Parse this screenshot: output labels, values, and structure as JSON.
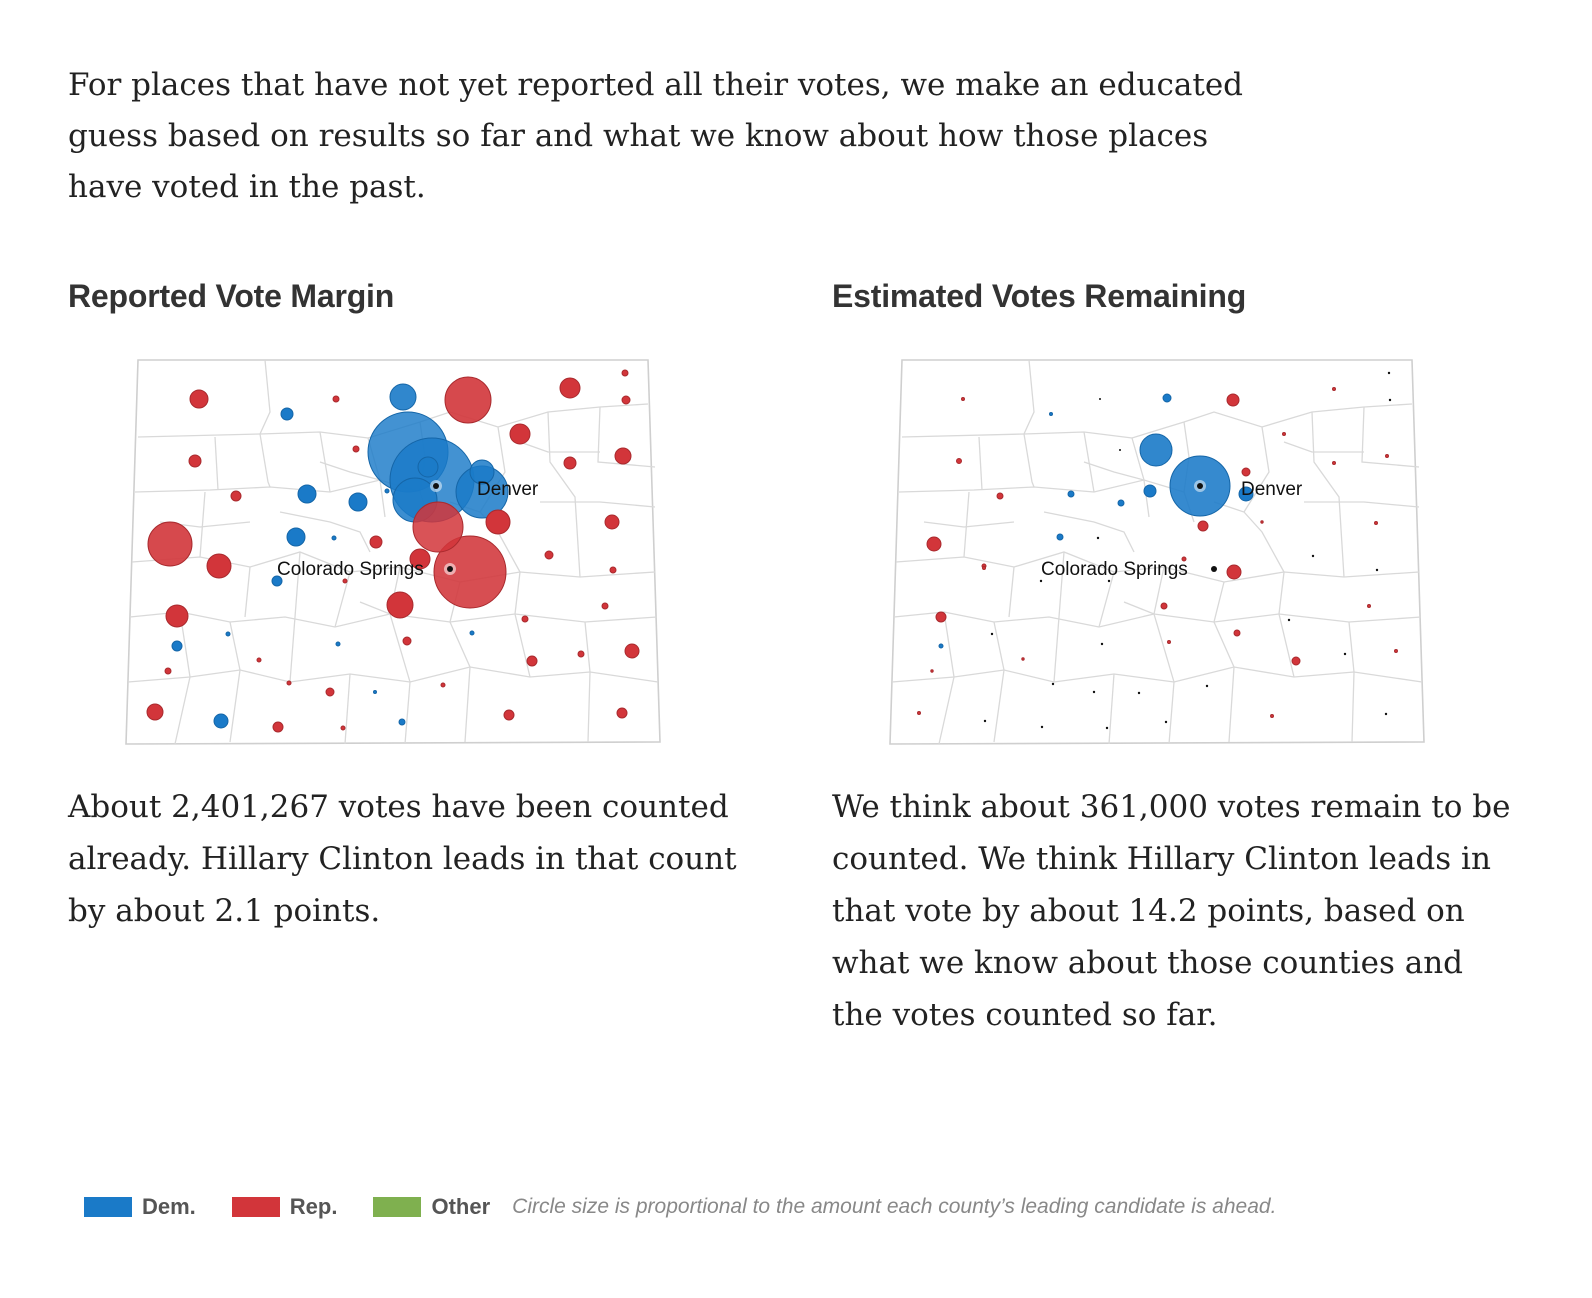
{
  "intro_text": "For places that have not yet reported all their votes, we make an educated guess based on results so far and what we know about how those places have voted in the past.",
  "colors": {
    "dem": "#1a7ac8",
    "rep": "#d2353a",
    "other": "#7fb04f",
    "map_line": "#d9d9d9"
  },
  "panels": [
    {
      "title": "Reported Vote Margin",
      "description": "About 2,401,267 votes have been counted already. Hillary Clinton leads in that count by about 2.1 points.",
      "cities": [
        "Denver",
        "Colorado Springs"
      ]
    },
    {
      "title": "Estimated Votes Remaining",
      "description": "We think about 361,000 votes remain to be counted. We think Hillary Clinton leads in that vote by about 14.2 points, based on what we know about those counties and the votes counted so far.",
      "cities": [
        "Denver",
        "Colorado Springs"
      ]
    }
  ],
  "legend": {
    "items": [
      {
        "label": "Dem.",
        "color": "#1a7ac8"
      },
      {
        "label": "Rep.",
        "color": "#d2353a"
      },
      {
        "label": "Other",
        "color": "#7fb04f"
      }
    ],
    "note": "Circle size is proportional to the amount each county’s leading candidate is ahead."
  }
}
